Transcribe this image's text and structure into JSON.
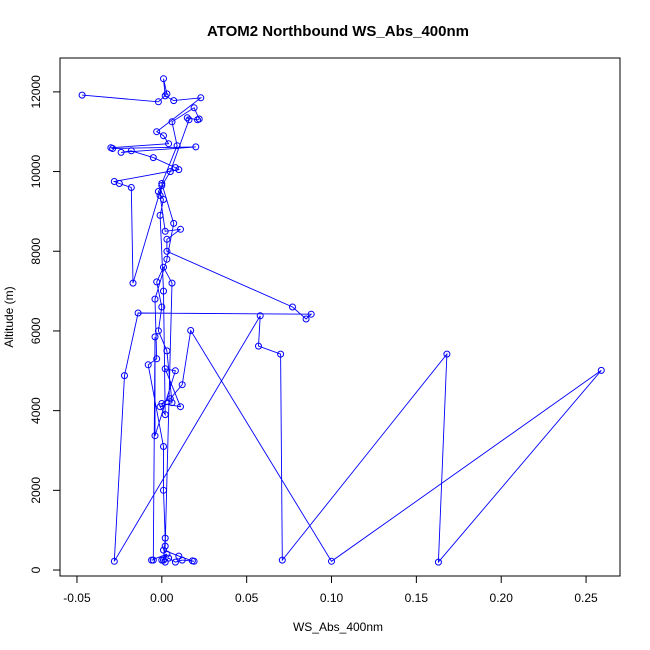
{
  "chart_data": {
    "type": "line",
    "title": "ATOM2 Northbound WS_Abs_400nm",
    "xlabel": "WS_Abs_400nm",
    "ylabel": "Altitude (m)",
    "xlim": [
      -0.06,
      0.27
    ],
    "ylim": [
      -150,
      12850
    ],
    "xticks": [
      -0.05,
      0.0,
      0.05,
      0.1,
      0.15,
      0.2,
      0.25
    ],
    "xtick_labels": [
      "-0.05",
      "0.00",
      "0.05",
      "0.10",
      "0.15",
      "0.20",
      "0.25"
    ],
    "yticks": [
      0,
      2000,
      4000,
      6000,
      8000,
      10000,
      12000
    ],
    "ytick_labels": [
      "0",
      "2000",
      "4000",
      "6000",
      "8000",
      "10000",
      "12000"
    ],
    "grid": false,
    "color": "#0000ff",
    "marker": "open-circle",
    "series": [
      {
        "points": [
          [
            -0.047,
            11920
          ],
          [
            -0.002,
            11750
          ],
          [
            0.003,
            11950
          ],
          [
            0.001,
            12330
          ],
          [
            0.002,
            11900
          ],
          [
            0.007,
            11780
          ],
          [
            0.023,
            11850
          ],
          [
            -0.003,
            11000
          ],
          [
            0.001,
            10900
          ],
          [
            0.004,
            10700
          ],
          [
            -0.03,
            10600
          ],
          [
            -0.029,
            10580
          ],
          [
            0.02,
            10620
          ],
          [
            -0.024,
            10480
          ],
          [
            -0.018,
            10520
          ],
          [
            -0.005,
            10350
          ],
          [
            0.008,
            10100
          ],
          [
            0.01,
            10050
          ],
          [
            -0.028,
            9750
          ],
          [
            -0.025,
            9700
          ],
          [
            -0.018,
            9600
          ],
          [
            -0.017,
            7200
          ],
          [
            0.0,
            9650
          ],
          [
            -0.001,
            9400
          ],
          [
            0.002,
            8500
          ],
          [
            0.011,
            8550
          ],
          [
            0.003,
            8300
          ],
          [
            0.003,
            8000
          ],
          [
            0.077,
            6600
          ],
          [
            0.085,
            6300
          ],
          [
            0.088,
            6420
          ],
          [
            -0.014,
            6450
          ],
          [
            -0.022,
            4880
          ],
          [
            -0.028,
            220
          ],
          [
            0.058,
            6380
          ],
          [
            0.057,
            5620
          ],
          [
            0.07,
            5420
          ],
          [
            0.071,
            250
          ],
          [
            0.168,
            5420
          ],
          [
            0.163,
            200
          ],
          [
            0.259,
            5010
          ],
          [
            0.1,
            220
          ],
          [
            0.017,
            6010
          ],
          [
            0.012,
            4650
          ],
          [
            0.005,
            4300
          ],
          [
            0.0,
            4180
          ],
          [
            0.011,
            4100
          ],
          [
            0.002,
            5050
          ],
          [
            0.008,
            5000
          ],
          [
            -0.004,
            3370
          ],
          [
            -0.004,
            5850
          ],
          [
            -0.005,
            250
          ],
          [
            -0.006,
            250
          ],
          [
            0.003,
            400
          ],
          [
            0.0,
            250
          ],
          [
            0.002,
            200
          ],
          [
            0.004,
            300
          ],
          [
            0.008,
            200
          ],
          [
            0.012,
            250
          ],
          [
            0.019,
            220
          ],
          [
            0.018,
            230
          ],
          [
            0.01,
            350
          ],
          [
            0.001,
            500
          ],
          [
            0.002,
            600
          ],
          [
            0.006,
            7200
          ],
          [
            0.001,
            7600
          ],
          [
            -0.003,
            7230
          ],
          [
            0.0,
            6600
          ],
          [
            -0.002,
            6000
          ],
          [
            0.003,
            5500
          ],
          [
            0.006,
            4200
          ],
          [
            -0.001,
            4100
          ],
          [
            0.002,
            3900
          ],
          [
            0.001,
            7000
          ],
          [
            -0.001,
            8900
          ],
          [
            0.001,
            9300
          ],
          [
            -0.002,
            9500
          ],
          [
            0.005,
            10000
          ],
          [
            0.016,
            11300
          ],
          [
            0.015,
            11350
          ],
          [
            0.021,
            11300
          ],
          [
            0.022,
            11320
          ],
          [
            0.019,
            11600
          ],
          [
            0.006,
            11250
          ],
          [
            0.009,
            10650
          ],
          [
            0.0,
            9700
          ],
          [
            0.007,
            8700
          ],
          [
            0.003,
            7800
          ],
          [
            -0.004,
            6800
          ],
          [
            -0.003,
            5300
          ],
          [
            -0.008,
            5150
          ],
          [
            0.001,
            3100
          ],
          [
            0.001,
            2000
          ],
          [
            0.002,
            800
          ],
          [
            0.001,
            250
          ]
        ]
      }
    ]
  }
}
